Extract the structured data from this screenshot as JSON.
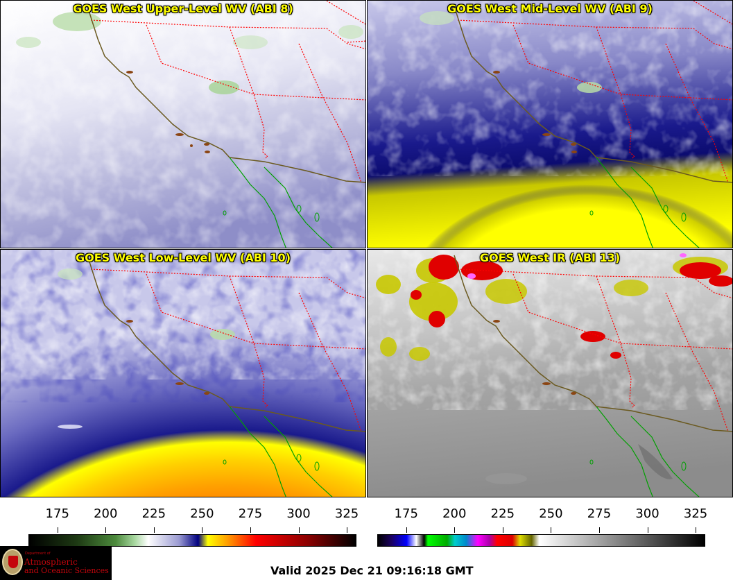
{
  "panels": {
    "upper": {
      "title": "GOES West Upper-Level WV (ABI 8)",
      "channel": "ABI 8"
    },
    "mid": {
      "title": "GOES West Mid-Level WV (ABI 9)",
      "channel": "ABI 9"
    },
    "low": {
      "title": "GOES West Low-Level WV (ABI 10)",
      "channel": "ABI 10"
    },
    "ir": {
      "title": "GOES West IR (ABI 13)",
      "channel": "ABI 13"
    }
  },
  "wv_scale": {
    "ticks": [
      "175",
      "200",
      "225",
      "250",
      "275",
      "300",
      "325"
    ],
    "range": [
      160,
      330
    ],
    "stops": [
      {
        "v": 160,
        "c": "#000000"
      },
      {
        "v": 185,
        "c": "#1e3a14"
      },
      {
        "v": 205,
        "c": "#4c8a3c"
      },
      {
        "v": 215,
        "c": "#a8d8a0"
      },
      {
        "v": 222,
        "c": "#ffffff"
      },
      {
        "v": 238,
        "c": "#9b9bd2"
      },
      {
        "v": 248,
        "c": "#000080"
      },
      {
        "v": 253,
        "c": "#ffff00"
      },
      {
        "v": 263,
        "c": "#ffa000"
      },
      {
        "v": 278,
        "c": "#ff0000"
      },
      {
        "v": 305,
        "c": "#8b0000"
      },
      {
        "v": 330,
        "c": "#000000"
      }
    ]
  },
  "ir_scale": {
    "ticks": [
      "175",
      "200",
      "225",
      "250",
      "275",
      "300",
      "325"
    ],
    "range": [
      160,
      330
    ],
    "stops": [
      {
        "v": 160,
        "c": "#000000"
      },
      {
        "v": 167,
        "c": "#1a0060"
      },
      {
        "v": 175,
        "c": "#0000ff"
      },
      {
        "v": 180,
        "c": "#ffffff"
      },
      {
        "v": 184,
        "c": "#000000"
      },
      {
        "v": 186,
        "c": "#00ff00"
      },
      {
        "v": 196,
        "c": "#00aa00"
      },
      {
        "v": 200,
        "c": "#00cccc"
      },
      {
        "v": 206,
        "c": "#0088cc"
      },
      {
        "v": 212,
        "c": "#ff00ff"
      },
      {
        "v": 218,
        "c": "#aa00aa"
      },
      {
        "v": 222,
        "c": "#ff0000"
      },
      {
        "v": 230,
        "c": "#dd0000"
      },
      {
        "v": 234,
        "c": "#dddd00"
      },
      {
        "v": 240,
        "c": "#666600"
      },
      {
        "v": 244,
        "c": "#ffffff"
      },
      {
        "v": 330,
        "c": "#000000"
      }
    ]
  },
  "colors": {
    "wv_moist": "#ffffff",
    "wv_dry": "#000080",
    "wv_very_dry": "#ffff00",
    "ir_cold_top": "#ff0000",
    "state_border": "#ff0000",
    "coastline": "#6b5a20",
    "mexico_coast": "#00a000"
  },
  "logo": {
    "dept": "Department of",
    "line1": "Atmospheric",
    "line2": "and Oceanic Sciences"
  },
  "valid_text": "Valid 2025 Dec 21 09:16:18 GMT"
}
